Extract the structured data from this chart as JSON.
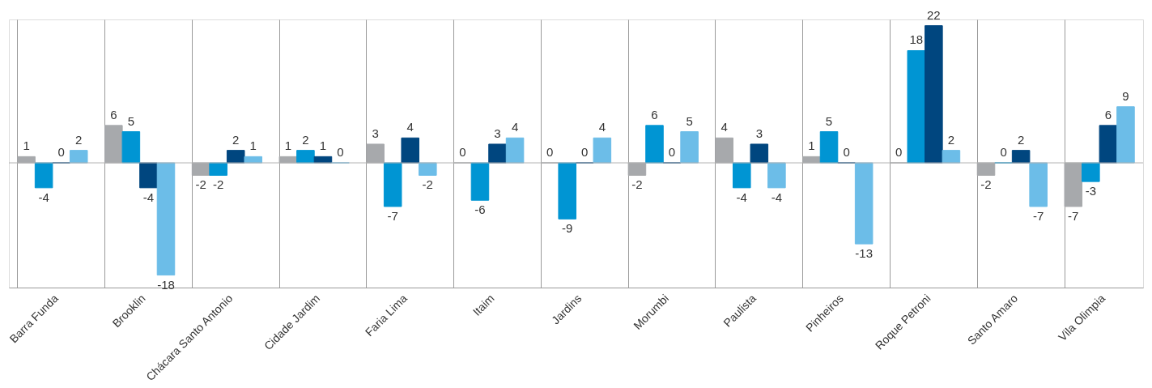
{
  "chart_data": {
    "type": "bar",
    "categories": [
      "Barra Funda",
      "Brooklin",
      "Chácara Santo Antonio",
      "Cidade Jardim",
      "Faria Lima",
      "Itaim",
      "Jardins",
      "Morumbi",
      "Paulista",
      "Pinheiros",
      "Roque Petroni",
      "Santo Amaro",
      "Vila Olimpia"
    ],
    "series": [
      {
        "color": "#a7a9ac",
        "values": [
          1,
          6,
          -2,
          1,
          3,
          0,
          0,
          -2,
          4,
          1,
          0,
          -2,
          -7
        ]
      },
      {
        "color": "#0095d3",
        "values": [
          -4,
          5,
          -2,
          2,
          -7,
          -6,
          -9,
          6,
          -4,
          5,
          18,
          0,
          -3
        ]
      },
      {
        "color": "#00467f",
        "values": [
          0,
          -4,
          2,
          1,
          4,
          3,
          0,
          0,
          3,
          0,
          22,
          2,
          6
        ]
      },
      {
        "color": "#6cbde8",
        "values": [
          2,
          -18,
          1,
          0,
          -2,
          4,
          4,
          5,
          -4,
          -13,
          2,
          -7,
          9
        ]
      }
    ],
    "ylim": [
      -20,
      23
    ],
    "data_labels": true,
    "grid": "x",
    "tick_labels": "x",
    "ref_lines": [
      {
        "axis": "y",
        "value": 0,
        "color": "#b0b0b0"
      }
    ]
  }
}
